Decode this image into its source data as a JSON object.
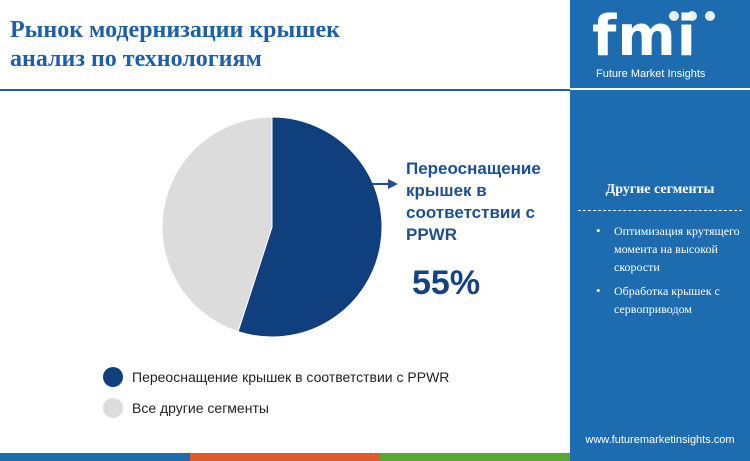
{
  "header": {
    "title_line1": "Рынок модернизации крышек",
    "title_line2": "анализ по технологиям"
  },
  "brand": {
    "logo_letters": "fmi",
    "logo_caption": "Future Market Insights",
    "url": "www.futuremarketinsights.com"
  },
  "side_panel": {
    "title": "Другие сегменты",
    "items": [
      "Оптимизация крутящего момента на высокой скорости",
      "Обработка крышек с сервоприводом"
    ]
  },
  "chart_data": {
    "type": "pie",
    "categories": [
      "Переоснащение крышек в соответствии с PPWR",
      "Все другие сегменты"
    ],
    "values": [
      55,
      45
    ],
    "colors": [
      "#0f3f7d",
      "#dcdcdc"
    ],
    "callout": {
      "label": "Переоснащение крышек в соответствии с PPWR",
      "value": "55%"
    },
    "legend": [
      {
        "label": "Переоснащение крышек в соответствии с PPWR",
        "color": "#0f3f7d"
      },
      {
        "label": "Все другие сегменты",
        "color": "#dcdcdc"
      }
    ],
    "legend_position": "bottom-left"
  },
  "bottom_bar_colors": [
    "#1d6cb0",
    "#e05a2a",
    "#5aa832",
    "#1d6cb0"
  ]
}
